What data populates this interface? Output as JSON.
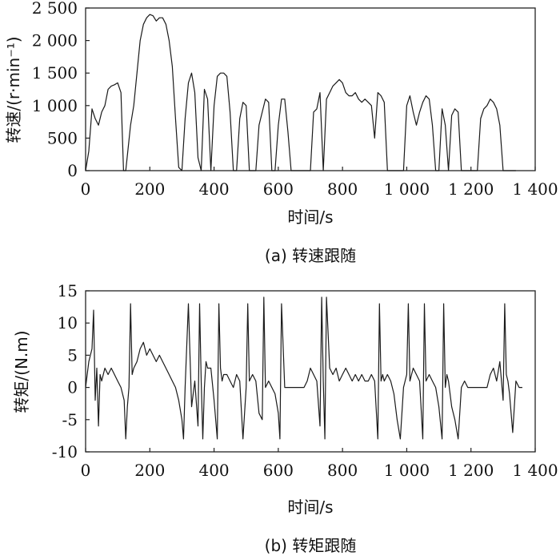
{
  "chart_data": [
    {
      "type": "line",
      "caption": "(a) 转速跟随",
      "xlabel": "时间/s",
      "ylabel": "转速/(r·min⁻¹)",
      "xlim": [
        0,
        1400
      ],
      "ylim": [
        0,
        2500
      ],
      "xticks": [
        0,
        200,
        400,
        600,
        800,
        1000,
        1200,
        1400
      ],
      "xtick_labels": [
        "0",
        "200",
        "400",
        "600",
        "800",
        "1 000",
        "1 200",
        "1 400"
      ],
      "yticks": [
        0,
        500,
        1000,
        1500,
        2000,
        2500
      ],
      "ytick_labels": [
        "0",
        "500",
        "1 000",
        "1 500",
        "2 000",
        "2 500"
      ],
      "series": [
        {
          "x": [
            0,
            10,
            20,
            30,
            40,
            50,
            60,
            70,
            80,
            90,
            100,
            110,
            118,
            125,
            140,
            150,
            160,
            170,
            180,
            190,
            200,
            210,
            220,
            230,
            240,
            250,
            260,
            270,
            280,
            290,
            300,
            310,
            320,
            330,
            340,
            350,
            360,
            370,
            380,
            390,
            400,
            410,
            420,
            430,
            440,
            450,
            460,
            470,
            480,
            490,
            500,
            510,
            520,
            530,
            540,
            550,
            560,
            570,
            580,
            590,
            600,
            610,
            620,
            630,
            640,
            650,
            660,
            670,
            680,
            690,
            700,
            710,
            720,
            730,
            740,
            750,
            760,
            770,
            780,
            790,
            800,
            810,
            820,
            830,
            840,
            850,
            860,
            870,
            880,
            890,
            900,
            910,
            920,
            930,
            940,
            950,
            960,
            970,
            980,
            990,
            1000,
            1010,
            1020,
            1030,
            1040,
            1050,
            1060,
            1070,
            1080,
            1090,
            1100,
            1110,
            1120,
            1130,
            1140,
            1150,
            1160,
            1170,
            1180,
            1190,
            1200,
            1210,
            1220,
            1230,
            1240,
            1250,
            1260,
            1270,
            1280,
            1290,
            1300,
            1310,
            1320,
            1330,
            1340
          ],
          "y": [
            0,
            300,
            950,
            800,
            700,
            900,
            1000,
            1250,
            1300,
            1320,
            1350,
            1200,
            0,
            0,
            700,
            1000,
            1500,
            2000,
            2250,
            2350,
            2400,
            2380,
            2300,
            2350,
            2350,
            2250,
            2000,
            1600,
            800,
            50,
            0,
            800,
            1350,
            1500,
            1200,
            200,
            0,
            1250,
            1100,
            0,
            1000,
            1450,
            1500,
            1500,
            1450,
            900,
            0,
            0,
            800,
            1050,
            1000,
            0,
            0,
            0,
            700,
            900,
            1100,
            1050,
            0,
            0,
            700,
            1100,
            1100,
            600,
            0,
            0,
            0,
            0,
            0,
            0,
            0,
            900,
            950,
            1200,
            0,
            1100,
            1200,
            1300,
            1350,
            1400,
            1350,
            1200,
            1150,
            1150,
            1200,
            1100,
            1050,
            1100,
            1050,
            1000,
            500,
            1200,
            1150,
            1050,
            0,
            0,
            0,
            0,
            0,
            0,
            1000,
            1150,
            900,
            700,
            900,
            1050,
            1150,
            1100,
            700,
            0,
            0,
            950,
            700,
            0,
            850,
            950,
            900,
            0,
            0,
            0,
            0,
            0,
            0,
            800,
            950,
            1000,
            1100,
            1050,
            950,
            700,
            0,
            0,
            0,
            0,
            0
          ]
        }
      ]
    },
    {
      "type": "line",
      "caption": "(b) 转矩跟随",
      "xlabel": "时间/s",
      "ylabel": "转矩/(N.m)",
      "xlim": [
        0,
        1400
      ],
      "ylim": [
        -10,
        15
      ],
      "xticks": [
        0,
        200,
        400,
        600,
        800,
        1000,
        1200,
        1400
      ],
      "xtick_labels": [
        "0",
        "200",
        "400",
        "600",
        "800",
        "1 000",
        "1 200",
        "1 400"
      ],
      "yticks": [
        -10,
        -5,
        0,
        5,
        10,
        15
      ],
      "ytick_labels": [
        "-10",
        "-5",
        "0",
        "5",
        "10",
        "15"
      ],
      "series": [
        {
          "x": [
            0,
            10,
            20,
            25,
            30,
            35,
            40,
            45,
            50,
            60,
            70,
            80,
            90,
            100,
            110,
            120,
            125,
            130,
            135,
            140,
            145,
            150,
            160,
            170,
            180,
            190,
            200,
            210,
            220,
            230,
            240,
            250,
            260,
            270,
            280,
            290,
            300,
            305,
            310,
            320,
            325,
            330,
            340,
            350,
            355,
            360,
            365,
            370,
            375,
            380,
            390,
            400,
            410,
            415,
            420,
            425,
            430,
            440,
            450,
            460,
            470,
            480,
            490,
            500,
            505,
            510,
            520,
            530,
            540,
            550,
            555,
            560,
            570,
            580,
            590,
            600,
            605,
            610,
            620,
            630,
            640,
            650,
            660,
            670,
            680,
            690,
            700,
            710,
            720,
            730,
            735,
            740,
            745,
            750,
            760,
            770,
            780,
            790,
            800,
            810,
            820,
            830,
            840,
            850,
            860,
            870,
            880,
            890,
            900,
            910,
            915,
            920,
            925,
            930,
            940,
            950,
            960,
            970,
            980,
            990,
            1000,
            1005,
            1010,
            1020,
            1030,
            1040,
            1050,
            1055,
            1060,
            1070,
            1080,
            1090,
            1100,
            1110,
            1115,
            1120,
            1125,
            1130,
            1140,
            1150,
            1160,
            1170,
            1180,
            1190,
            1200,
            1210,
            1220,
            1230,
            1240,
            1250,
            1260,
            1270,
            1280,
            1290,
            1300,
            1305,
            1310,
            1315,
            1320,
            1330,
            1340,
            1350,
            1360
          ],
          "y": [
            0,
            4,
            6,
            12,
            -2,
            3,
            -6,
            2,
            1,
            3,
            2,
            3,
            2,
            1,
            0,
            -2,
            -8,
            -3,
            0,
            13,
            2,
            3,
            4,
            6,
            7,
            5,
            6,
            5,
            4,
            5,
            4,
            3,
            2,
            1,
            0,
            -2,
            -5,
            -8,
            0,
            13,
            5,
            -3,
            1,
            -6,
            13,
            1,
            -8,
            0,
            4,
            3,
            3,
            -2,
            -8,
            13,
            3,
            1,
            2,
            2,
            1,
            0,
            2,
            1,
            -8,
            0,
            13,
            1,
            2,
            1,
            -4,
            -5,
            14,
            0,
            1,
            0,
            -1,
            -4,
            -8,
            13,
            0,
            0,
            0,
            0,
            0,
            0,
            0,
            1,
            3,
            2,
            1,
            -6,
            14,
            1,
            -8,
            14,
            3,
            2,
            3,
            1,
            2,
            3,
            2,
            1,
            2,
            1,
            2,
            1,
            1,
            2,
            1,
            -8,
            13,
            1,
            2,
            1,
            2,
            1,
            -1,
            -5,
            -8,
            0,
            2,
            13,
            1,
            3,
            2,
            1,
            -8,
            13,
            1,
            2,
            1,
            0,
            -3,
            -8,
            13,
            0,
            2,
            1,
            -3,
            -5,
            -8,
            0,
            1,
            0,
            0,
            0,
            0,
            0,
            0,
            0,
            2,
            3,
            1,
            4,
            -2,
            13,
            2,
            1,
            -1,
            -7,
            1,
            0,
            0
          ]
        }
      ]
    }
  ]
}
